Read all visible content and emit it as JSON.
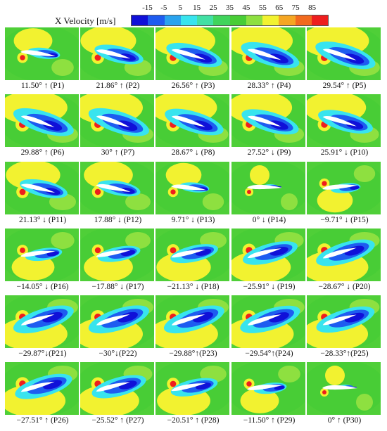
{
  "legend": {
    "title": "X Velocity [m/s]",
    "ticks": [
      "-15",
      "-5",
      "5",
      "15",
      "25",
      "35",
      "45",
      "55",
      "65",
      "75",
      "85"
    ],
    "colors": [
      "#1010d8",
      "#1e5cf0",
      "#2aa3ee",
      "#38e4ee",
      "#42e0a4",
      "#40d45c",
      "#48cd36",
      "#8ee040",
      "#f2f230",
      "#f5a623",
      "#f26a1e",
      "#ee1e1e"
    ]
  },
  "panels": [
    {
      "label": "11.50° ↑ (P1)",
      "angle_deg": 11.5
    },
    {
      "label": "21.86° ↑ (P2)",
      "angle_deg": 21.86
    },
    {
      "label": "26.56° ↑ (P3)",
      "angle_deg": 26.56
    },
    {
      "label": "28.33° ↑ (P4)",
      "angle_deg": 28.33
    },
    {
      "label": "29.54° ↑ (P5)",
      "angle_deg": 29.54
    },
    {
      "label": "29.88° ↑ (P6)",
      "angle_deg": 29.88
    },
    {
      "label": "30° ↑ (P7)",
      "angle_deg": 30
    },
    {
      "label": "28.67° ↓ (P8)",
      "angle_deg": 28.67
    },
    {
      "label": "27.52° ↓ (P9)",
      "angle_deg": 27.52
    },
    {
      "label": "25.91° ↓ (P10)",
      "angle_deg": 25.91
    },
    {
      "label": "21.13° ↓ (P11)",
      "angle_deg": 21.13
    },
    {
      "label": "17.88° ↓ (P12)",
      "angle_deg": 17.88
    },
    {
      "label": "9.71° ↓ (P13)",
      "angle_deg": 9.71
    },
    {
      "label": "0° ↓ (P14)",
      "angle_deg": 0
    },
    {
      "label": "−9.71° ↓ (P15)",
      "angle_deg": -9.71
    },
    {
      "label": "−14.05° ↓ (P16)",
      "angle_deg": -14.05
    },
    {
      "label": "−17.88° ↓ (P17)",
      "angle_deg": -17.88
    },
    {
      "label": "−21.13° ↓ (P18)",
      "angle_deg": -21.13
    },
    {
      "label": "−25.91° ↓ (P19)",
      "angle_deg": -25.91
    },
    {
      "label": "−28.67° ↓ (P20)",
      "angle_deg": -28.67
    },
    {
      "label": "−29.87°↓(P21)",
      "angle_deg": -29.87
    },
    {
      "label": "−30°↓(P22)",
      "angle_deg": -30
    },
    {
      "label": "−29.88°↑(P23)",
      "angle_deg": -29.88
    },
    {
      "label": "−29.54°↑(P24)",
      "angle_deg": -29.54
    },
    {
      "label": "−28.33°↑(P25)",
      "angle_deg": -28.33
    },
    {
      "label": "−27.51° ↑ (P26)",
      "angle_deg": -27.51
    },
    {
      "label": "−25.52° ↑ (P27)",
      "angle_deg": -25.52
    },
    {
      "label": "−20.51° ↑ (P28)",
      "angle_deg": -20.51
    },
    {
      "label": "−11.50° ↑ (P29)",
      "angle_deg": -11.5
    },
    {
      "label": "0° ↑ (P30)",
      "angle_deg": 0
    }
  ]
}
